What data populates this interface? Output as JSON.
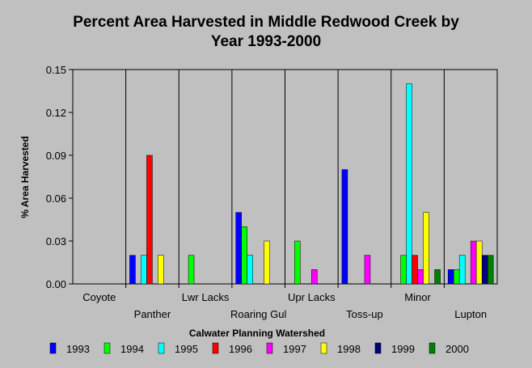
{
  "chart_data": {
    "type": "bar",
    "title_line1": "Percent Area Harvested in Middle Redwood Creek by",
    "title_line2": "Year 1993-2000",
    "xlabel": "Calwater Planning Watershed",
    "ylabel": "% Area Harvested",
    "ylim": [
      0,
      0.15
    ],
    "yticks": [
      "0.00",
      "0.03",
      "0.06",
      "0.09",
      "0.12",
      "0.15"
    ],
    "grid": "vertical separators between categories",
    "legend_position": "bottom",
    "categories": [
      "Coyote",
      "Panther",
      "Lwr Lacks",
      "Roaring Gul",
      "Upr Lacks",
      "Toss-up",
      "Minor",
      "Lupton"
    ],
    "series": [
      {
        "name": "1993",
        "color": "#0000ff",
        "values": [
          0,
          0.02,
          0,
          0.05,
          0,
          0.08,
          0,
          0.01
        ]
      },
      {
        "name": "1994",
        "color": "#00ff00",
        "values": [
          0,
          0,
          0.02,
          0.04,
          0.03,
          0,
          0.02,
          0.01
        ]
      },
      {
        "name": "1995",
        "color": "#00ffff",
        "values": [
          0,
          0.02,
          0,
          0.02,
          0,
          0,
          0.14,
          0.02
        ]
      },
      {
        "name": "1996",
        "color": "#ff0000",
        "values": [
          0,
          0.09,
          0,
          0,
          0,
          0,
          0.02,
          0
        ]
      },
      {
        "name": "1997",
        "color": "#ff00ff",
        "values": [
          0,
          0,
          0,
          0,
          0.01,
          0.02,
          0.01,
          0.03
        ]
      },
      {
        "name": "1998",
        "color": "#ffff00",
        "values": [
          0,
          0.02,
          0,
          0.03,
          0,
          0,
          0.05,
          0.03
        ]
      },
      {
        "name": "1999",
        "color": "#000080",
        "values": [
          0,
          0,
          0,
          0,
          0,
          0,
          0,
          0.02
        ]
      },
      {
        "name": "2000",
        "color": "#008000",
        "values": [
          0,
          0,
          0,
          0,
          0,
          0,
          0.01,
          0.02
        ]
      }
    ]
  }
}
